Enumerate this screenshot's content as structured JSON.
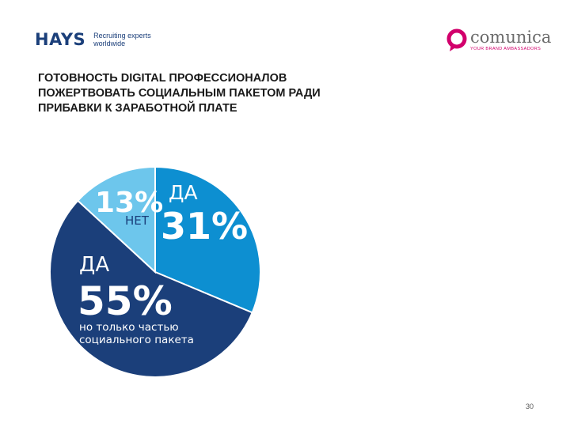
{
  "header": {
    "hays": {
      "wordmark": "HAYS",
      "tagline_1": "Recruiting experts",
      "tagline_2": "worldwide"
    },
    "comunica": {
      "wordmark": "comunica",
      "tagline": "YOUR BRAND AMBASSADORS"
    }
  },
  "title_lines": [
    "ГОТОВНОСТЬ DIGITAL ПРОФЕССИОНАЛОВ",
    "ПОЖЕРТВОВАТЬ СОЦИАЛЬНЫМ ПАКЕТОМ РАДИ",
    "ПРИБАВКИ К ЗАРАБОТНОЙ ПЛАТЕ"
  ],
  "chart_data": {
    "type": "pie",
    "title": "ГОТОВНОСТЬ DIGITAL ПРОФЕССИОНАЛОВ ПОЖЕРТВОВАТЬ СОЦИАЛЬНЫМ ПАКЕТОМ РАДИ ПРИБАВКИ К ЗАРАБОТНОЙ ПЛАТЕ",
    "slices": [
      {
        "key": "yes-full",
        "label": "ДА",
        "value": 31,
        "display": "31%",
        "color": "#0d8fd1"
      },
      {
        "key": "yes-partial",
        "label": "ДА",
        "value": 55,
        "display": "55%",
        "note_1": "но только частью",
        "note_2": "социального пакета",
        "color": "#1b3f7a"
      },
      {
        "key": "no",
        "label": "НЕТ",
        "value": 13,
        "display": "13%",
        "color": "#6dc6ec"
      }
    ]
  },
  "colors": {
    "brand_blue": "#1b3f7a",
    "comunica_pink": "#d2006c"
  },
  "page_number": "30"
}
